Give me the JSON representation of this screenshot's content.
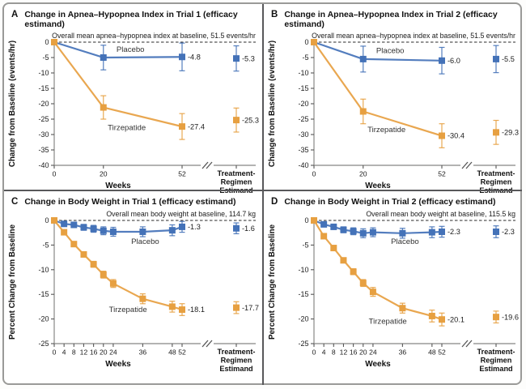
{
  "chart_data": [
    {
      "id": "A",
      "type": "line",
      "title": "Change in Apnea–Hypopnea Index in Trial 1 (efficacy estimand)",
      "baseline_note": "Overall mean apnea–hypopnea index at baseline, 51.5 events/hr",
      "xlabel": "Weeks",
      "ylabel": "Change from Baseline (events/hr)",
      "ylim": [
        -40,
        0
      ],
      "yticks": [
        0,
        -5,
        -10,
        -15,
        -20,
        -25,
        -30,
        -35,
        -40
      ],
      "xticks": [
        0,
        20,
        52
      ],
      "estimand_axis_label": [
        "Treatment-",
        "Regimen",
        "Estimand"
      ],
      "grid": false,
      "legend_position": "inline-labels",
      "series": [
        {
          "name": "Placebo",
          "color": "#4472b8",
          "x": [
            0,
            20,
            52
          ],
          "y": [
            0,
            -5.0,
            -4.8
          ],
          "err": [
            0,
            4.0,
            4.5
          ],
          "end_label": "-4.8",
          "estimand": {
            "y": -5.3,
            "err": 4.1,
            "label": "-5.3"
          },
          "name_label": {
            "x": 31,
            "y": -3.2
          }
        },
        {
          "name": "Tirzepatide",
          "color": "#e7a041",
          "x": [
            0,
            20,
            52
          ],
          "y": [
            0,
            -21.2,
            -27.4
          ],
          "err": [
            0,
            3.8,
            4.2
          ],
          "end_label": "-27.4",
          "estimand": {
            "y": -25.3,
            "err": 3.9,
            "label": "-25.3"
          },
          "name_label": {
            "x": 29.5,
            "y": -28.6
          }
        }
      ]
    },
    {
      "id": "B",
      "type": "line",
      "title": "Change in Apnea–Hypopnea Index in Trial 2 (efficacy estimand)",
      "baseline_note": "Overall mean apnea–hypopnea index at baseline, 51.5 events/hr",
      "xlabel": "Weeks",
      "ylabel": "Change from Baseline (events/hr)",
      "ylim": [
        -40,
        0
      ],
      "yticks": [
        0,
        -5,
        -10,
        -15,
        -20,
        -25,
        -30,
        -35,
        -40
      ],
      "xticks": [
        0,
        20,
        52
      ],
      "estimand_axis_label": [
        "Treatment-",
        "Regimen",
        "Estimand"
      ],
      "grid": false,
      "legend_position": "inline-labels",
      "series": [
        {
          "name": "Placebo",
          "color": "#4472b8",
          "x": [
            0,
            20,
            52
          ],
          "y": [
            0,
            -5.5,
            -6.0
          ],
          "err": [
            0,
            4.2,
            4.3
          ],
          "end_label": "-6.0",
          "estimand": {
            "y": -5.5,
            "err": 4.4,
            "label": "-5.5"
          },
          "name_label": {
            "x": 31,
            "y": -3.5
          }
        },
        {
          "name": "Tirzepatide",
          "color": "#e7a041",
          "x": [
            0,
            20,
            52
          ],
          "y": [
            0,
            -22.5,
            -30.4
          ],
          "err": [
            0,
            4.0,
            3.9
          ],
          "end_label": "-30.4",
          "estimand": {
            "y": -29.3,
            "err": 3.9,
            "label": "-29.3"
          },
          "name_label": {
            "x": 29.5,
            "y": -29.2
          }
        }
      ]
    },
    {
      "id": "C",
      "type": "line",
      "title": "Change in Body Weight in Trial 1 (efficacy estimand)",
      "baseline_note": "Overall mean body weight at baseline, 114.7 kg",
      "xlabel": "Weeks",
      "ylabel": "Percent Change from Baseline",
      "ylim": [
        -25,
        0
      ],
      "yticks": [
        0,
        -5,
        -10,
        -15,
        -20,
        -25
      ],
      "xticks": [
        0,
        4,
        8,
        12,
        16,
        20,
        24,
        36,
        48,
        52
      ],
      "estimand_axis_label": [
        "Treatment-",
        "Regimen",
        "Estimand"
      ],
      "grid": false,
      "legend_position": "inline-labels",
      "series": [
        {
          "name": "Placebo",
          "color": "#4472b8",
          "x": [
            0,
            4,
            8,
            12,
            16,
            20,
            24,
            36,
            48,
            52
          ],
          "y": [
            0,
            -0.7,
            -0.9,
            -1.4,
            -1.7,
            -2.1,
            -2.3,
            -2.3,
            -2.0,
            -1.3
          ],
          "err": [
            0,
            0.4,
            0.5,
            0.6,
            0.7,
            0.8,
            0.9,
            1.0,
            1.1,
            1.1
          ],
          "end_label": "-1.3",
          "estimand": {
            "y": -1.6,
            "err": 1.1,
            "label": "-1.6"
          },
          "name_label": {
            "x": 37,
            "y": -4.8
          }
        },
        {
          "name": "Tirzepatide",
          "color": "#e7a041",
          "x": [
            0,
            4,
            8,
            12,
            16,
            20,
            24,
            36,
            48,
            52
          ],
          "y": [
            0,
            -2.4,
            -4.8,
            -6.9,
            -8.9,
            -11.0,
            -12.8,
            -15.9,
            -17.5,
            -18.1
          ],
          "err": [
            0,
            0.3,
            0.4,
            0.5,
            0.6,
            0.7,
            0.8,
            1.0,
            1.1,
            1.2
          ],
          "end_label": "-18.1",
          "estimand": {
            "y": -17.7,
            "err": 1.2,
            "label": "-17.7"
          },
          "name_label": {
            "x": 30,
            "y": -18.6
          }
        }
      ]
    },
    {
      "id": "D",
      "type": "line",
      "title": "Change in Body Weight in Trial 2 (efficacy estimand)",
      "baseline_note": "Overall mean body weight at baseline, 115.5 kg",
      "xlabel": "Weeks",
      "ylabel": "Percent Change from Baseline",
      "ylim": [
        -25,
        0
      ],
      "yticks": [
        0,
        -5,
        -10,
        -15,
        -20,
        -25
      ],
      "xticks": [
        0,
        4,
        8,
        12,
        16,
        20,
        24,
        36,
        48,
        52
      ],
      "estimand_axis_label": [
        "Treatment-",
        "Regimen",
        "Estimand"
      ],
      "grid": false,
      "legend_position": "inline-labels",
      "series": [
        {
          "name": "Placebo",
          "color": "#4472b8",
          "x": [
            0,
            4,
            8,
            12,
            16,
            20,
            24,
            36,
            48,
            52
          ],
          "y": [
            0,
            -0.8,
            -1.3,
            -1.9,
            -2.2,
            -2.6,
            -2.4,
            -2.6,
            -2.4,
            -2.3
          ],
          "err": [
            0,
            0.4,
            0.5,
            0.6,
            0.7,
            0.9,
            0.9,
            1.0,
            1.1,
            1.1
          ],
          "end_label": "-2.3",
          "estimand": {
            "y": -2.3,
            "err": 1.2,
            "label": "-2.3"
          },
          "name_label": {
            "x": 37,
            "y": -4.8
          }
        },
        {
          "name": "Tirzepatide",
          "color": "#e7a041",
          "x": [
            0,
            4,
            8,
            12,
            16,
            20,
            24,
            36,
            48,
            52
          ],
          "y": [
            0,
            -3.2,
            -5.6,
            -8.1,
            -10.4,
            -12.7,
            -14.5,
            -17.8,
            -19.4,
            -20.1
          ],
          "err": [
            0,
            0.3,
            0.4,
            0.5,
            0.6,
            0.7,
            0.9,
            1.0,
            1.2,
            1.3
          ],
          "end_label": "-20.1",
          "estimand": {
            "y": -19.6,
            "err": 1.2,
            "label": "-19.6"
          },
          "name_label": {
            "x": 30,
            "y": -21.0
          }
        }
      ]
    }
  ]
}
